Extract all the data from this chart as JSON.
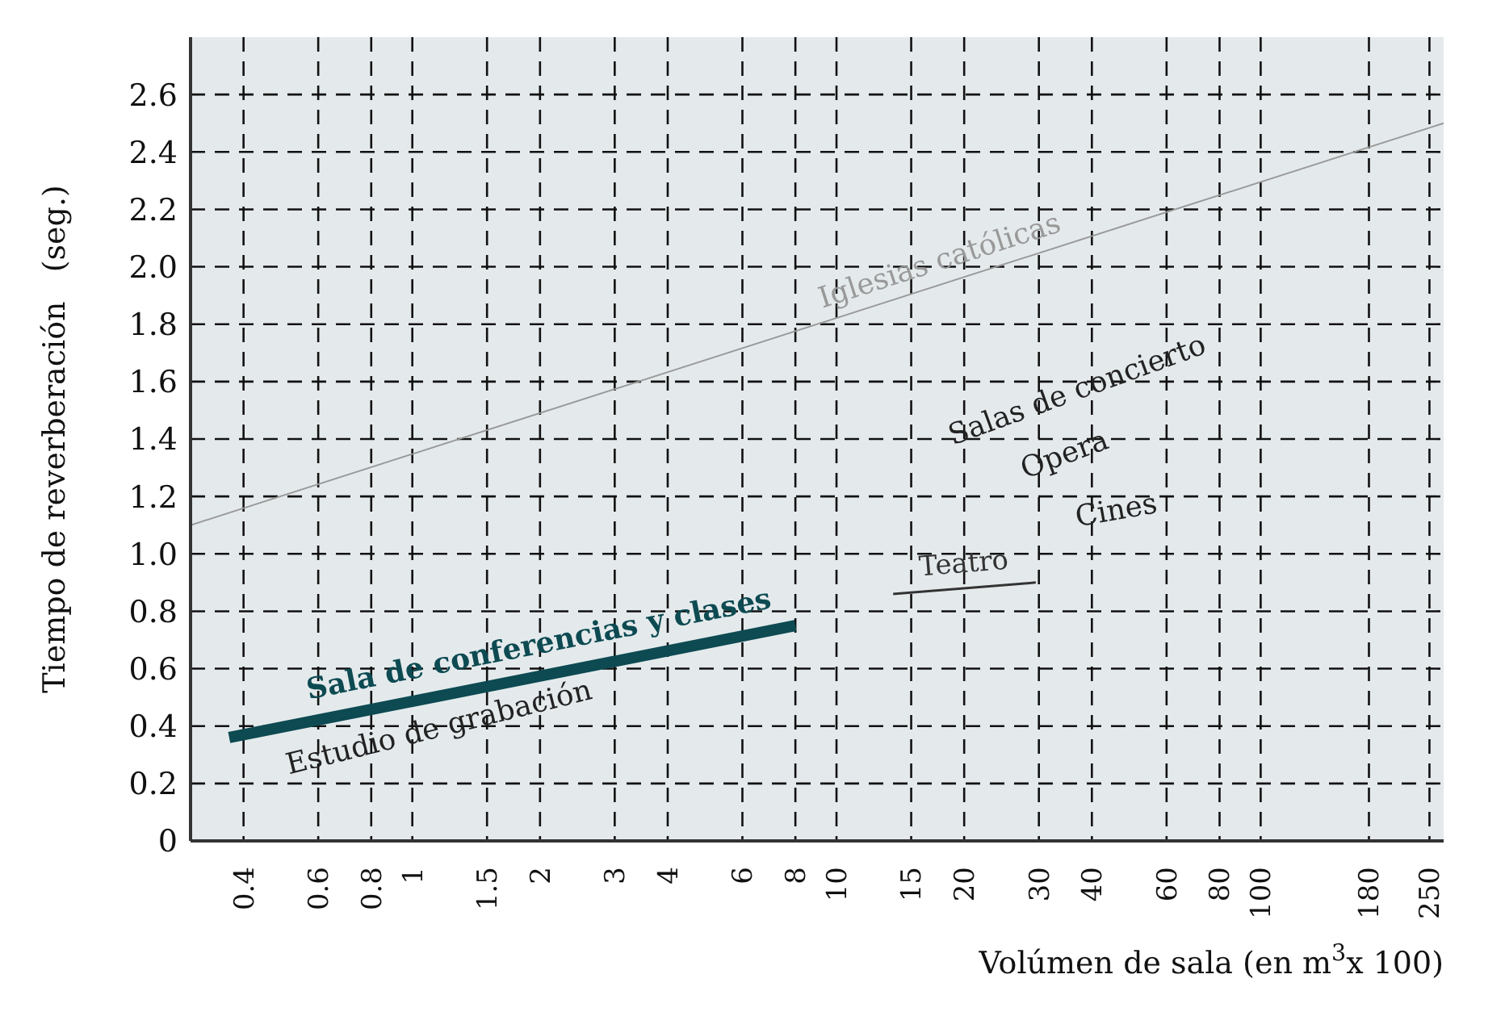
{
  "chart_data": {
    "type": "line",
    "xlabel": "Volúmen de sala (en m$^{3}$x 100)",
    "ylabel": "Tiempo de reverberación   (seg.)",
    "log": "x",
    "xlim": [
      0.3,
      270
    ],
    "xticks": [
      0.4,
      0.6,
      0.8,
      1,
      1.5,
      2,
      3,
      4,
      6,
      8,
      10,
      15,
      20,
      30,
      40,
      60,
      80,
      100,
      180,
      250
    ],
    "ylim": [
      0,
      2.8
    ],
    "yticks": [
      0,
      0.2,
      0.4,
      0.6,
      0.8,
      {
        "value": 1,
        "label": "1.0"
      },
      1.2,
      1.4,
      1.6,
      1.8,
      {
        "value": 2,
        "label": "2.0"
      },
      2.2,
      2.4,
      2.6
    ],
    "grid": true,
    "marker": "none",
    "series": [
      {
        "name": "Iglesias católicas",
        "color": "#999999",
        "x": [
          0.3,
          270
        ],
        "values": [
          1.1,
          2.5
        ]
      },
      {
        "name": "Sala de conferencias y clases",
        "color": "#0d4a52",
        "x": [
          0.37,
          8
        ],
        "values": [
          0.36,
          0.75
        ]
      },
      {
        "name": "Teatro",
        "color": "#333333",
        "x": [
          13.6,
          29.5
        ],
        "values": [
          0.86,
          0.9
        ]
      }
    ],
    "annotations": [
      "Salas de concierto",
      "Opera",
      "Cines",
      "Estudio de grabación"
    ]
  }
}
